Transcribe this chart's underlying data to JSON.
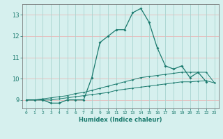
{
  "xlabel": "Humidex (Indice chaleur)",
  "background_color": "#d6f0ee",
  "grid_color_h": "#e8b8b8",
  "grid_color_v": "#a8d4d0",
  "line_color": "#1a7a6e",
  "xlim": [
    -0.5,
    23.5
  ],
  "ylim": [
    8.6,
    13.5
  ],
  "yticks": [
    9,
    10,
    11,
    12,
    13
  ],
  "xticks": [
    0,
    1,
    2,
    3,
    4,
    5,
    6,
    7,
    8,
    9,
    10,
    11,
    12,
    13,
    14,
    15,
    16,
    17,
    18,
    19,
    20,
    21,
    22,
    23
  ],
  "line1_x": [
    0,
    1,
    2,
    3,
    4,
    5,
    6,
    7,
    8,
    9,
    10,
    11,
    12,
    13,
    14,
    15,
    16,
    17,
    18,
    19,
    20,
    21,
    22
  ],
  "line1_y": [
    9.0,
    9.0,
    9.0,
    8.85,
    8.85,
    9.0,
    9.0,
    9.0,
    10.05,
    11.7,
    12.0,
    12.3,
    12.3,
    13.1,
    13.3,
    12.65,
    11.45,
    10.6,
    10.45,
    10.6,
    10.05,
    10.3,
    9.85
  ],
  "line2_x": [
    0,
    1,
    2,
    3,
    4,
    5,
    6,
    7,
    8,
    9,
    10,
    11,
    12,
    13,
    14,
    15,
    16,
    17,
    18,
    19,
    20,
    21,
    22,
    23
  ],
  "line2_y": [
    9.0,
    9.0,
    9.05,
    9.1,
    9.15,
    9.2,
    9.3,
    9.35,
    9.45,
    9.55,
    9.65,
    9.75,
    9.85,
    9.95,
    10.05,
    10.1,
    10.15,
    10.2,
    10.25,
    10.3,
    10.3,
    10.3,
    10.3,
    9.8
  ],
  "line3_x": [
    0,
    1,
    2,
    3,
    4,
    5,
    6,
    7,
    8,
    9,
    10,
    11,
    12,
    13,
    14,
    15,
    16,
    17,
    18,
    19,
    20,
    21,
    22,
    23
  ],
  "line3_y": [
    9.0,
    9.0,
    9.0,
    9.0,
    9.05,
    9.1,
    9.15,
    9.2,
    9.25,
    9.3,
    9.35,
    9.45,
    9.5,
    9.55,
    9.6,
    9.65,
    9.7,
    9.75,
    9.8,
    9.85,
    9.85,
    9.88,
    9.9,
    9.8
  ]
}
